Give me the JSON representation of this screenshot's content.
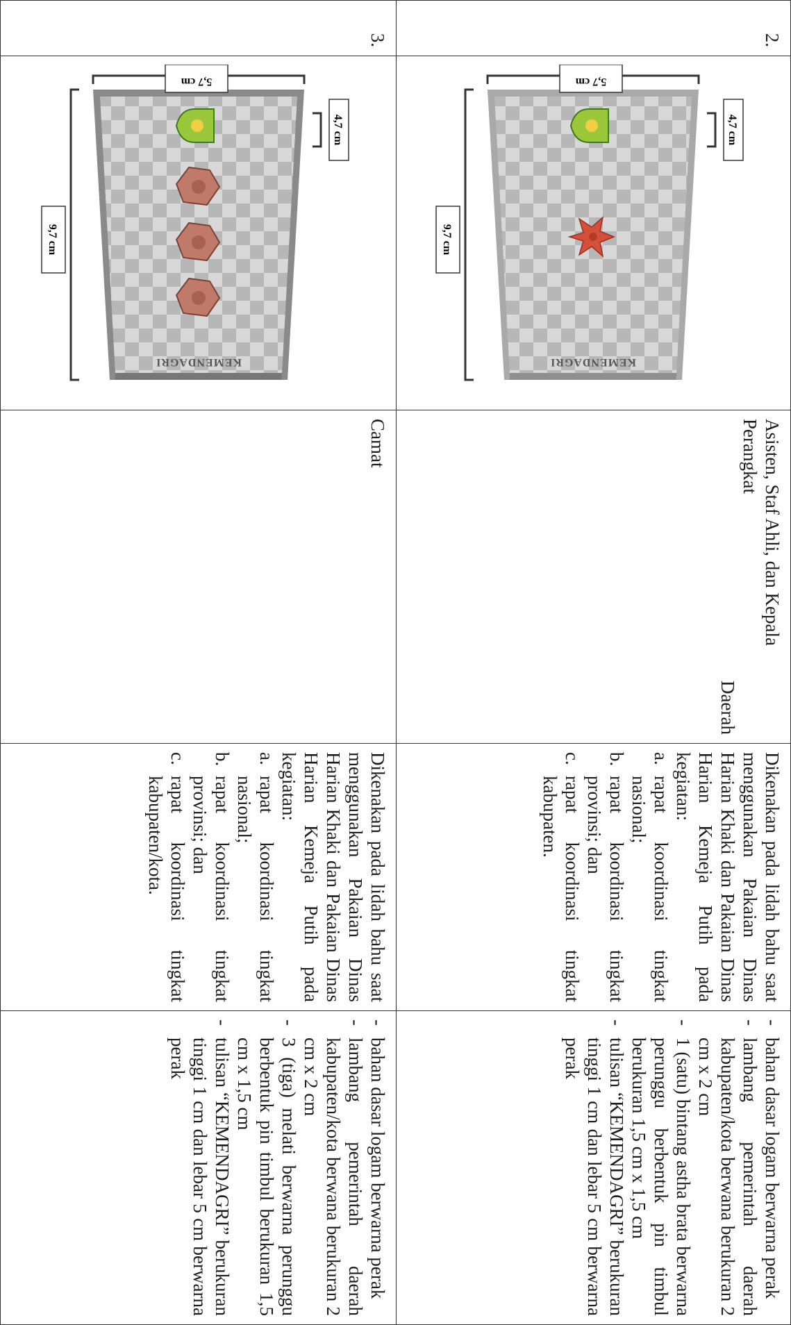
{
  "rows": [
    {
      "no": "2.",
      "image": {
        "plate_text": "KEMENDAGRI",
        "dim_small": "4,7 cm",
        "dim_width": "5,7 cm",
        "dim_length": "9,7 cm",
        "ornament": "star-icon",
        "ornament_count": 1,
        "plate_color": "#c8c8c8"
      },
      "jabatan_line1": "Asisten, Staf Ahli, dan Kepala",
      "jabatan_line2": "Perangkat",
      "jabatan_line3": "Daerah",
      "ket_intro": "Dikenakan pada lidah bahu saat menggunakan Pakaian Dinas Harian Khaki dan Pakaian Dinas Harian Kemeja Putih pada kegiatan:",
      "ket_items": [
        {
          "letter": "a.",
          "text": "rapat koordinasi tingkat nasional;"
        },
        {
          "letter": "b.",
          "text": "rapat koordinasi tingkat provinsi; dan"
        },
        {
          "letter": "c.",
          "text": "rapat koordinasi tingkat kabupaten."
        }
      ],
      "spec": [
        "bahan dasar logam berwarna perak",
        "lambang pemerintah daerah kabupaten/kota berwana berukuran 2 cm x 2 cm",
        "1 (satu) bintang astha brata berwarna perunggu berbentuk pin timbul berukuran 1,5 cm x 1,5 cm",
        "tulisan “KEMENDAGRI” berukuran tinggi 1 cm dan lebar 5 cm berwarna perak"
      ]
    },
    {
      "no": "3.",
      "image": {
        "plate_text": "KEMENDAGRI",
        "dim_small": "4,7 cm",
        "dim_width": "5,7 cm",
        "dim_length": "9,7 cm",
        "ornament": "melati-icon",
        "ornament_count": 3,
        "plate_color": "#9a9a9a"
      },
      "jabatan_line1": "Camat",
      "ket_intro": "Dikenakan pada lidah bahu saat menggunakan Pakaian Dinas Harian Khaki dan Pakaian Dinas Harian Kemeja Putih pada kegiatan:",
      "ket_items": [
        {
          "letter": "a.",
          "text": "rapat koordinasi tingkat nasional;"
        },
        {
          "letter": "b.",
          "text": "rapat koordinasi tingkat provinsi; dan"
        },
        {
          "letter": "c.",
          "text": "rapat koordinasi tingkat kabupaten/kota."
        }
      ],
      "spec": [
        "bahan dasar logam berwarna perak",
        "lambang pemerintah daerah kabupaten/kota berwana berukuran 2 cm x 2 cm",
        "3 (tiga) melati berwarna perunggu berbentuk pin timbul berukuran 1,5 cm x 1,5 cm",
        "tulisan “KEMENDAGRI” berukuran tinggi 1 cm dan lebar 5 cm berwarna perak"
      ]
    }
  ]
}
